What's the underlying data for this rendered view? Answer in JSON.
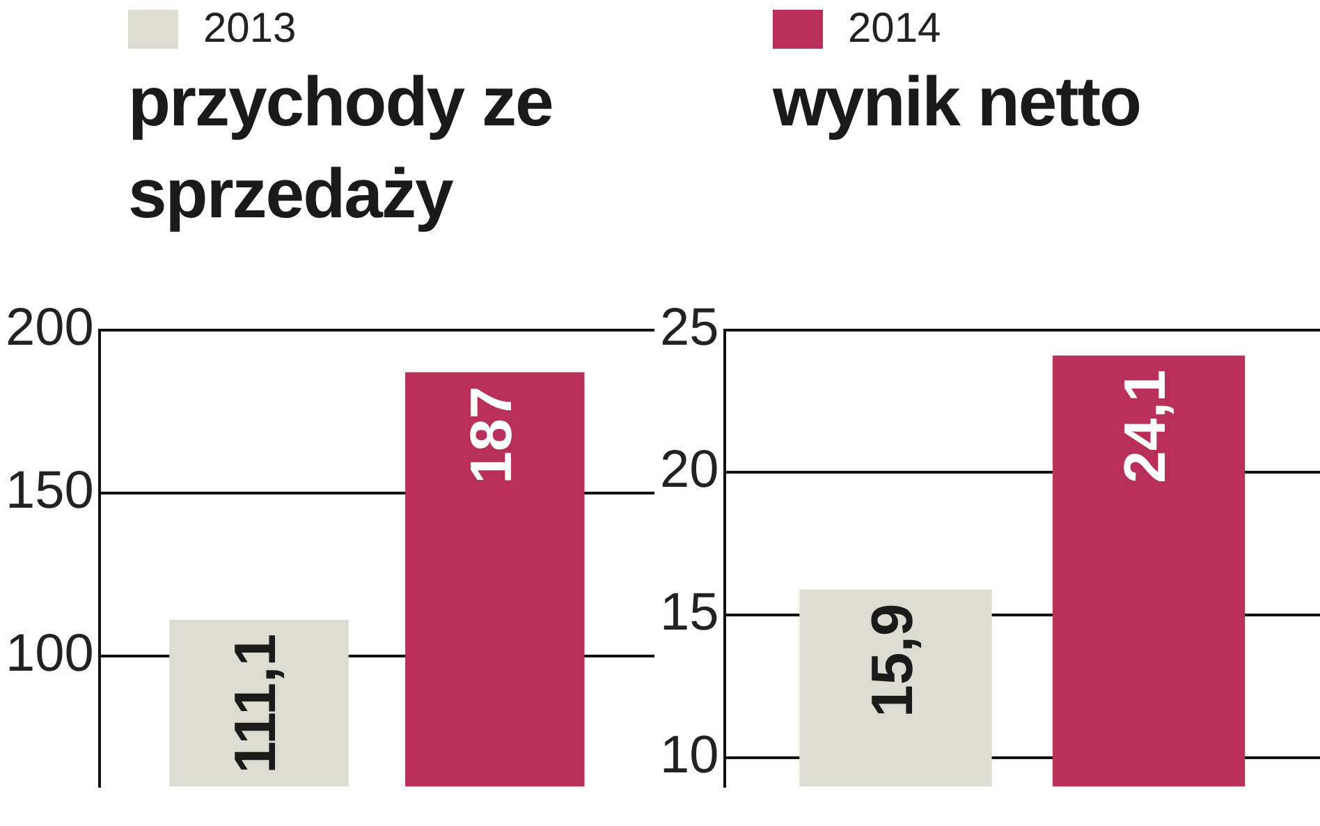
{
  "chart_data": [
    {
      "type": "bar",
      "title": "przychody ze sprzedaży",
      "categories": [
        null
      ],
      "series": [
        {
          "name": "2013",
          "color": "#dcdcd2",
          "values": [
            111.1
          ],
          "value_labels": [
            "111,1"
          ]
        },
        {
          "name": "2014",
          "color": "#b8305a",
          "values": [
            187
          ],
          "value_labels": [
            "187"
          ]
        }
      ],
      "ylim": [
        60,
        200
      ],
      "yticks": [
        100,
        150,
        200
      ],
      "grid": "y",
      "legend": "top"
    },
    {
      "type": "bar",
      "title": "wynik netto",
      "categories": [
        null
      ],
      "series": [
        {
          "color": "#dcdcd2",
          "values": [
            15.9
          ],
          "value_labels": [
            "15,9"
          ]
        },
        {
          "color": "#b8305a",
          "values": [
            24.1
          ],
          "value_labels": [
            "24,1"
          ]
        }
      ],
      "ylim": [
        9,
        25
      ],
      "yticks": [
        10,
        15,
        20,
        25
      ],
      "grid": "y"
    }
  ]
}
